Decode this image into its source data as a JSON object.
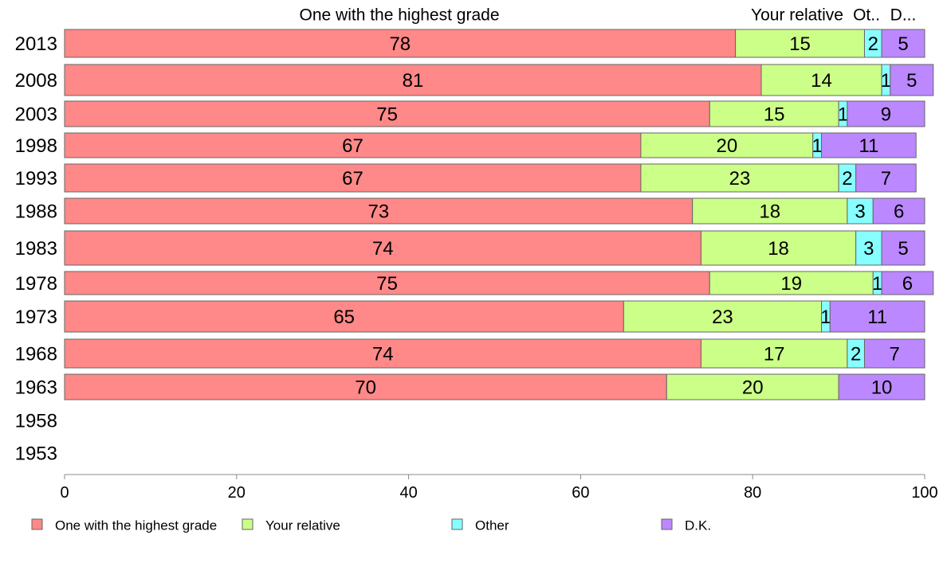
{
  "chart_data": {
    "type": "bar",
    "orientation": "horizontal",
    "stacked": true,
    "categories": [
      "2013",
      "2008",
      "2003",
      "1998",
      "1993",
      "1988",
      "1983",
      "1978",
      "1973",
      "1968",
      "1963",
      "1958",
      "1953"
    ],
    "series": [
      {
        "name": "One with the highest grade",
        "color": "#ff8888",
        "values": [
          78,
          81,
          75,
          67,
          67,
          73,
          74,
          75,
          65,
          74,
          70,
          null,
          null
        ]
      },
      {
        "name": "Your relative",
        "color": "#ccff88",
        "values": [
          15,
          14,
          15,
          20,
          23,
          18,
          18,
          19,
          23,
          17,
          20,
          null,
          null
        ]
      },
      {
        "name": "Other",
        "color": "#88ffff",
        "values": [
          2,
          1,
          1,
          1,
          2,
          3,
          3,
          1,
          1,
          2,
          null,
          null,
          null
        ]
      },
      {
        "name": "D.K.",
        "color": "#bb88ff",
        "values": [
          5,
          5,
          9,
          11,
          7,
          6,
          5,
          6,
          11,
          7,
          10,
          null,
          null
        ]
      }
    ],
    "header_labels": [
      "One with the highest grade",
      "Your relative",
      "Ot..",
      "D..."
    ],
    "xlim": [
      0,
      100
    ],
    "xticks": [
      0,
      20,
      40,
      60,
      80,
      100
    ],
    "legend_position": "bottom",
    "grid": false
  }
}
